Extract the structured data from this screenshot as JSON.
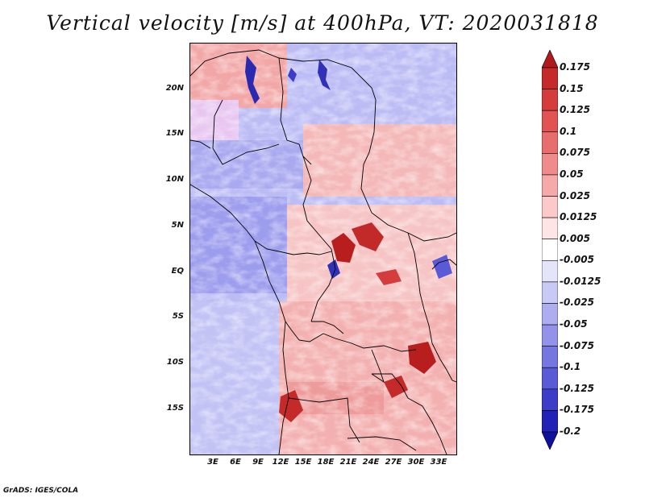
{
  "title": "Vertical velocity [m/s] at 400hPa, VT: 2020031818",
  "footer": "GrADS: IGES/COLA",
  "map": {
    "region": "Central Africa",
    "latitude_labels": [
      "20N",
      "15N",
      "10N",
      "5N",
      "EQ",
      "5S",
      "10S",
      "15S"
    ],
    "longitude_labels": [
      "3E",
      "6E",
      "9E",
      "12E",
      "15E",
      "18E",
      "21E",
      "24E",
      "27E",
      "30E",
      "33E"
    ]
  },
  "colorbar": {
    "levels": [
      "0.175",
      "0.15",
      "0.125",
      "0.1",
      "0.075",
      "0.05",
      "0.025",
      "0.0125",
      "0.005",
      "-0.005",
      "-0.0125",
      "-0.025",
      "-0.05",
      "-0.075",
      "-0.1",
      "-0.125",
      "-0.175",
      "-0.2"
    ],
    "colors": [
      "#b11a1a",
      "#c52a2a",
      "#d53c3c",
      "#e05454",
      "#e86e6e",
      "#ef8b8b",
      "#f5a9a9",
      "#fbc9c9",
      "#fde5e5",
      "#ffffff",
      "#e4e4fb",
      "#c9c9f6",
      "#adadf0",
      "#9292ea",
      "#7676e1",
      "#5a5ad6",
      "#3c3cc8",
      "#2222b4",
      "#10109a"
    ]
  }
}
